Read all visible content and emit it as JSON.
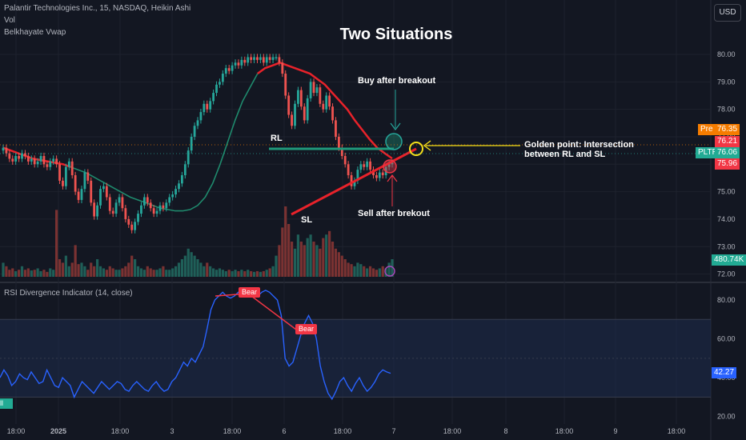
{
  "header": {
    "symbol_line": "Palantir Technologies Inc., 15, NASDAQ, Heikin Ashi",
    "indicator_1": "Vol",
    "indicator_2": "Belkhayate Vwap",
    "currency": "USD"
  },
  "annotations": {
    "title": "Two Situations",
    "buy": "Buy after breakout",
    "sell": "Sell after brekout",
    "golden_line1": "Golden point: Intersection",
    "golden_line2": "between RL and SL",
    "rl": "RL",
    "sl": "SL"
  },
  "price_labels": {
    "pre_tag": "Pre",
    "pre_value": "76.35",
    "last_value": "76.21",
    "symbol_tag": "PLTR",
    "symbol_value": "76.06",
    "low_value": "75.96",
    "volume_value": "480.74K"
  },
  "rsi": {
    "title": "RSI Divergence Indicator (14, close)",
    "bear_label": "Bear",
    "bull_label": "Bull",
    "value": "42.27"
  },
  "colors": {
    "background": "#131722",
    "bull_candle": "#26a69a",
    "bear_candle": "#ef5350",
    "vwap": "#e8222a",
    "vwap_green": "#1f8a6d",
    "rsi_line": "#2962ff",
    "golden": "#f5e11a"
  },
  "chart_data": [
    {
      "type": "candlestick",
      "name": "price",
      "y_ticks": [
        "80.00",
        "79.00",
        "78.00",
        "77.00",
        "76.00",
        "75.00",
        "74.00",
        "73.00",
        "72.00"
      ],
      "x_ticks": [
        "18:00",
        "2025",
        "18:00",
        "3",
        "18:00",
        "6",
        "18:00",
        "7",
        "18:00",
        "8",
        "18:00",
        "9",
        "18:00"
      ],
      "ylim": [
        71.9,
        80.7
      ],
      "closes": [
        76.6,
        76.4,
        76.2,
        76.1,
        76.3,
        76.2,
        76.4,
        76.3,
        76.1,
        76.2,
        76.0,
        76.1,
        76.3,
        76.0,
        75.9,
        76.1,
        76.2,
        76.0,
        75.4,
        75.2,
        75.9,
        76.1,
        75.6,
        75.0,
        74.7,
        75.1,
        75.7,
        75.4,
        74.6,
        74.1,
        74.5,
        75.1,
        75.2,
        74.8,
        74.3,
        74.2,
        74.6,
        74.8,
        74.4,
        74.0,
        73.8,
        73.6,
        73.9,
        74.2,
        74.5,
        74.8,
        74.6,
        74.4,
        74.2,
        74.3,
        74.5,
        74.4,
        74.6,
        74.8,
        74.9,
        75.1,
        75.3,
        75.6,
        76.0,
        76.5,
        77.0,
        77.4,
        77.6,
        77.9,
        78.2,
        78.0,
        78.3,
        78.6,
        78.9,
        79.0,
        79.3,
        79.5,
        79.4,
        79.6,
        79.7,
        79.6,
        79.8,
        79.7,
        79.9,
        79.8,
        79.9,
        79.8,
        79.9,
        79.7,
        79.9,
        79.8,
        79.9,
        79.9,
        79.7,
        79.3,
        78.5,
        77.8,
        77.4,
        78.2,
        78.7,
        78.1,
        77.6,
        78.4,
        79.0,
        78.6,
        78.8,
        78.2,
        78.0,
        78.5,
        78.1,
        77.6,
        77.0,
        76.6,
        76.3,
        76.0,
        75.6,
        75.2,
        75.4,
        75.8,
        76.0,
        75.9,
        76.1,
        75.8,
        75.6,
        75.5,
        75.7,
        75.6,
        75.9,
        76.0,
        76.06
      ],
      "opens": [
        76.5,
        76.6,
        76.4,
        76.2,
        76.1,
        76.3,
        76.2,
        76.4,
        76.3,
        76.1,
        76.2,
        76.0,
        76.1,
        76.3,
        76.0,
        75.9,
        76.1,
        76.2,
        76.0,
        75.4,
        75.2,
        75.9,
        76.1,
        75.6,
        75.0,
        74.7,
        75.1,
        75.7,
        75.4,
        74.6,
        74.1,
        74.5,
        75.1,
        75.2,
        74.8,
        74.3,
        74.2,
        74.6,
        74.8,
        74.4,
        74.0,
        73.8,
        73.6,
        73.9,
        74.2,
        74.5,
        74.8,
        74.6,
        74.4,
        74.2,
        74.3,
        74.5,
        74.4,
        74.6,
        74.8,
        74.9,
        75.1,
        75.3,
        75.6,
        76.0,
        76.5,
        77.0,
        77.4,
        77.6,
        77.9,
        78.2,
        78.0,
        78.3,
        78.6,
        78.9,
        79.0,
        79.3,
        79.5,
        79.4,
        79.6,
        79.7,
        79.6,
        79.8,
        79.7,
        79.9,
        79.8,
        79.9,
        79.8,
        79.9,
        79.7,
        79.9,
        79.8,
        79.9,
        79.9,
        79.7,
        79.3,
        78.5,
        77.8,
        77.4,
        78.2,
        78.7,
        78.1,
        77.6,
        78.4,
        79.0,
        78.6,
        78.8,
        78.2,
        78.0,
        78.5,
        78.1,
        77.6,
        77.0,
        76.6,
        76.3,
        76.0,
        75.6,
        75.2,
        75.4,
        75.8,
        76.0,
        75.9,
        76.1,
        75.8,
        75.6,
        75.5,
        75.7,
        75.6,
        75.9,
        76.0
      ],
      "volume_relative": [
        0.2,
        0.15,
        0.1,
        0.12,
        0.08,
        0.1,
        0.15,
        0.1,
        0.12,
        0.09,
        0.1,
        0.12,
        0.08,
        0.1,
        0.07,
        0.12,
        0.1,
        0.95,
        0.25,
        0.2,
        0.3,
        0.15,
        0.2,
        0.45,
        0.18,
        0.2,
        0.15,
        0.1,
        0.2,
        0.15,
        0.25,
        0.15,
        0.12,
        0.1,
        0.15,
        0.12,
        0.1,
        0.1,
        0.12,
        0.15,
        0.2,
        0.3,
        0.25,
        0.15,
        0.12,
        0.1,
        0.15,
        0.12,
        0.1,
        0.1,
        0.12,
        0.15,
        0.1,
        0.1,
        0.12,
        0.15,
        0.2,
        0.25,
        0.3,
        0.4,
        0.35,
        0.3,
        0.25,
        0.2,
        0.15,
        0.2,
        0.15,
        0.12,
        0.1,
        0.12,
        0.1,
        0.08,
        0.1,
        0.08,
        0.1,
        0.08,
        0.1,
        0.08,
        0.1,
        0.08,
        0.07,
        0.08,
        0.07,
        0.08,
        0.1,
        0.12,
        0.15,
        0.3,
        0.45,
        0.7,
        1.0,
        0.75,
        0.5,
        0.4,
        0.6,
        0.5,
        0.45,
        0.55,
        0.6,
        0.5,
        0.45,
        0.4,
        0.55,
        0.6,
        0.65,
        0.5,
        0.4,
        0.35,
        0.3,
        0.25,
        0.2,
        0.18,
        0.15,
        0.2,
        0.18,
        0.15,
        0.12,
        0.15,
        0.12,
        0.1,
        0.12,
        0.15,
        0.12,
        0.2,
        0.25
      ],
      "vwap": [
        76.6,
        76.5,
        76.4,
        76.3,
        76.2,
        76.15,
        76.1,
        76.05,
        76.0,
        75.9,
        75.8,
        75.7,
        75.55,
        75.4,
        75.25,
        75.1,
        74.95,
        74.8,
        74.7,
        74.6,
        74.5,
        74.4,
        74.35,
        74.3,
        74.3,
        74.35,
        74.5,
        74.8,
        75.3,
        76.0,
        76.8,
        77.6,
        78.3,
        78.8,
        79.3,
        79.5,
        79.6,
        79.7,
        79.6,
        79.5,
        79.4,
        79.3,
        79.1,
        78.9,
        78.6,
        78.3,
        78.0,
        77.6,
        77.25,
        76.9,
        76.6,
        76.4,
        76.21
      ],
      "vwap_split_index": 23
    },
    {
      "type": "line",
      "name": "RSI Divergence Indicator (14, close)",
      "y_ticks": [
        "80.00",
        "60.00",
        "40.00",
        "20.00"
      ],
      "ylim": [
        17,
        87
      ],
      "values": [
        40,
        44,
        41,
        36,
        38,
        42,
        40,
        39,
        43,
        40,
        37,
        38,
        44,
        40,
        36,
        35,
        40,
        38,
        36,
        30,
        34,
        38,
        36,
        34,
        32,
        35,
        38,
        36,
        34,
        36,
        38,
        37,
        34,
        33,
        36,
        38,
        36,
        34,
        33,
        36,
        38,
        35,
        33,
        34,
        38,
        40,
        44,
        48,
        46,
        50,
        48,
        52,
        56,
        65,
        75,
        80,
        82,
        84,
        82,
        81,
        82,
        84,
        85,
        84,
        83,
        82,
        82,
        84,
        85,
        84,
        82,
        80,
        72,
        50,
        46,
        48,
        55,
        62,
        68,
        72,
        68,
        60,
        46,
        38,
        32,
        29,
        33,
        38,
        40,
        36,
        33,
        37,
        40,
        36,
        33,
        35,
        38,
        42,
        44,
        43,
        42.27
      ]
    }
  ]
}
